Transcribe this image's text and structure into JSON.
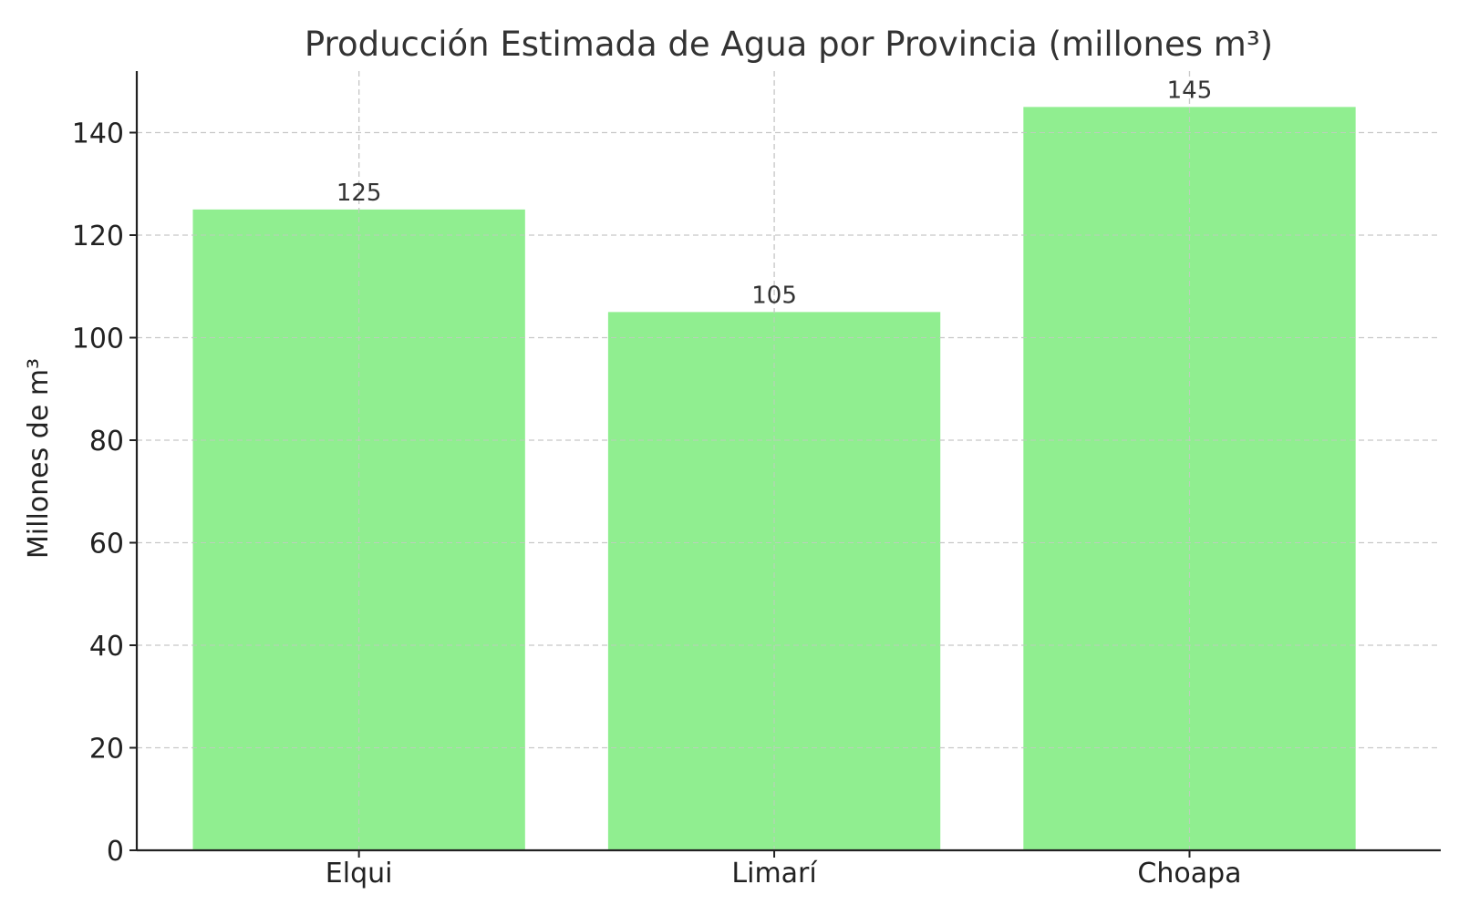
{
  "chart_data": {
    "type": "bar",
    "title": "Producción Estimada de Agua por Provincia (millones m³)",
    "xlabel": "",
    "ylabel": "Millones de m³",
    "categories": [
      "Elqui",
      "Limarí",
      "Choapa"
    ],
    "values": [
      125,
      105,
      145
    ],
    "value_labels": [
      "125",
      "105",
      "145"
    ],
    "ylim": [
      0,
      152
    ],
    "yticks": [
      0,
      20,
      40,
      60,
      80,
      100,
      120,
      140
    ],
    "ytick_labels": [
      "0",
      "20",
      "40",
      "60",
      "80",
      "100",
      "120",
      "140"
    ],
    "grid": true,
    "legend": "none",
    "colors": {
      "bar": "#90ee90",
      "grid": "#c8c8c8",
      "axis": "#222222",
      "text": "#333333"
    }
  }
}
